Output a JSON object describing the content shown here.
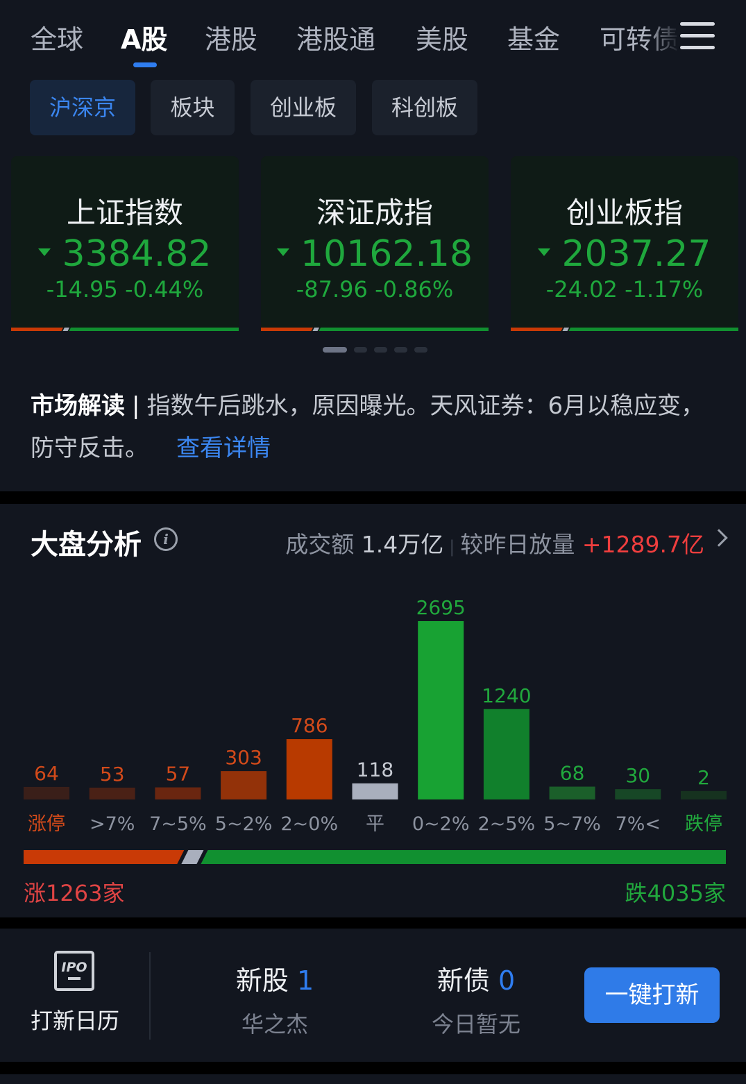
{
  "market_tabs": [
    {
      "label": "全球"
    },
    {
      "label": "A股",
      "active": true
    },
    {
      "label": "港股"
    },
    {
      "label": "港股通"
    },
    {
      "label": "美股"
    },
    {
      "label": "基金"
    },
    {
      "label": "可转债"
    }
  ],
  "sub_tabs": [
    {
      "label": "沪深京",
      "active": true
    },
    {
      "label": "板块"
    },
    {
      "label": "创业板"
    },
    {
      "label": "科创板"
    }
  ],
  "indices": [
    {
      "name": "上证指数",
      "value": "3384.82",
      "change": "-14.95 -0.44%",
      "direction": "down"
    },
    {
      "name": "深证成指",
      "value": "10162.18",
      "change": "-87.96 -0.86%",
      "direction": "down"
    },
    {
      "name": "创业板指",
      "value": "2037.27",
      "change": "-24.02 -1.17%",
      "direction": "down"
    }
  ],
  "carousel": {
    "pages": 5,
    "current": 1
  },
  "news": {
    "label": "市场解读",
    "text": "指数午后跳水，原因曝光。天风证券：6月以稳应变，防守反击。",
    "link": "查看详情"
  },
  "analysis": {
    "title": "大盘分析",
    "turnover_label": "成交额",
    "turnover": "1.4万亿",
    "compare_label": "较昨日放量",
    "compare": "+1289.7亿"
  },
  "chart_data": {
    "type": "bar",
    "categories": [
      "涨停",
      ">7%",
      "7~5%",
      "5~2%",
      "2~0%",
      "平",
      "0~2%",
      "2~5%",
      "5~7%",
      "7%<",
      "跌停"
    ],
    "values": [
      64,
      53,
      57,
      303,
      786,
      118,
      2695,
      1240,
      68,
      30,
      2
    ],
    "colors": [
      "#3a1f19",
      "#4a2116",
      "#6a2610",
      "#933209",
      "#b83a00",
      "#a9afbd",
      "#18a233",
      "#11802c",
      "#1b5f2a",
      "#174726",
      "#16321f"
    ],
    "label_colors": [
      "#d24a1a",
      "#d24a1a",
      "#d24a1a",
      "#d24a1a",
      "#d24a1a",
      "#c7cbd3",
      "#21a83d",
      "#21a83d",
      "#21a83d",
      "#21a83d",
      "#21a83d"
    ]
  },
  "breadth": {
    "up_label": "涨1263家",
    "down_label": "跌4035家",
    "up": 1263,
    "flat": 118,
    "down": 4035,
    "up_color": "#c93a06",
    "flat_color": "#a9afbd",
    "down_color": "#119030"
  },
  "ipo": {
    "calendar_label": "打新日历",
    "icon_text": "IPO",
    "new_stock_label": "新股",
    "new_stock_count": "1",
    "new_stock_name": "华之杰",
    "new_bond_label": "新债",
    "new_bond_count": "0",
    "new_bond_name": "今日暂无",
    "button": "一键打新"
  },
  "colors": {
    "accent": "#2f7df0",
    "up": "#ef3e3e",
    "down": "#1fa83d"
  }
}
